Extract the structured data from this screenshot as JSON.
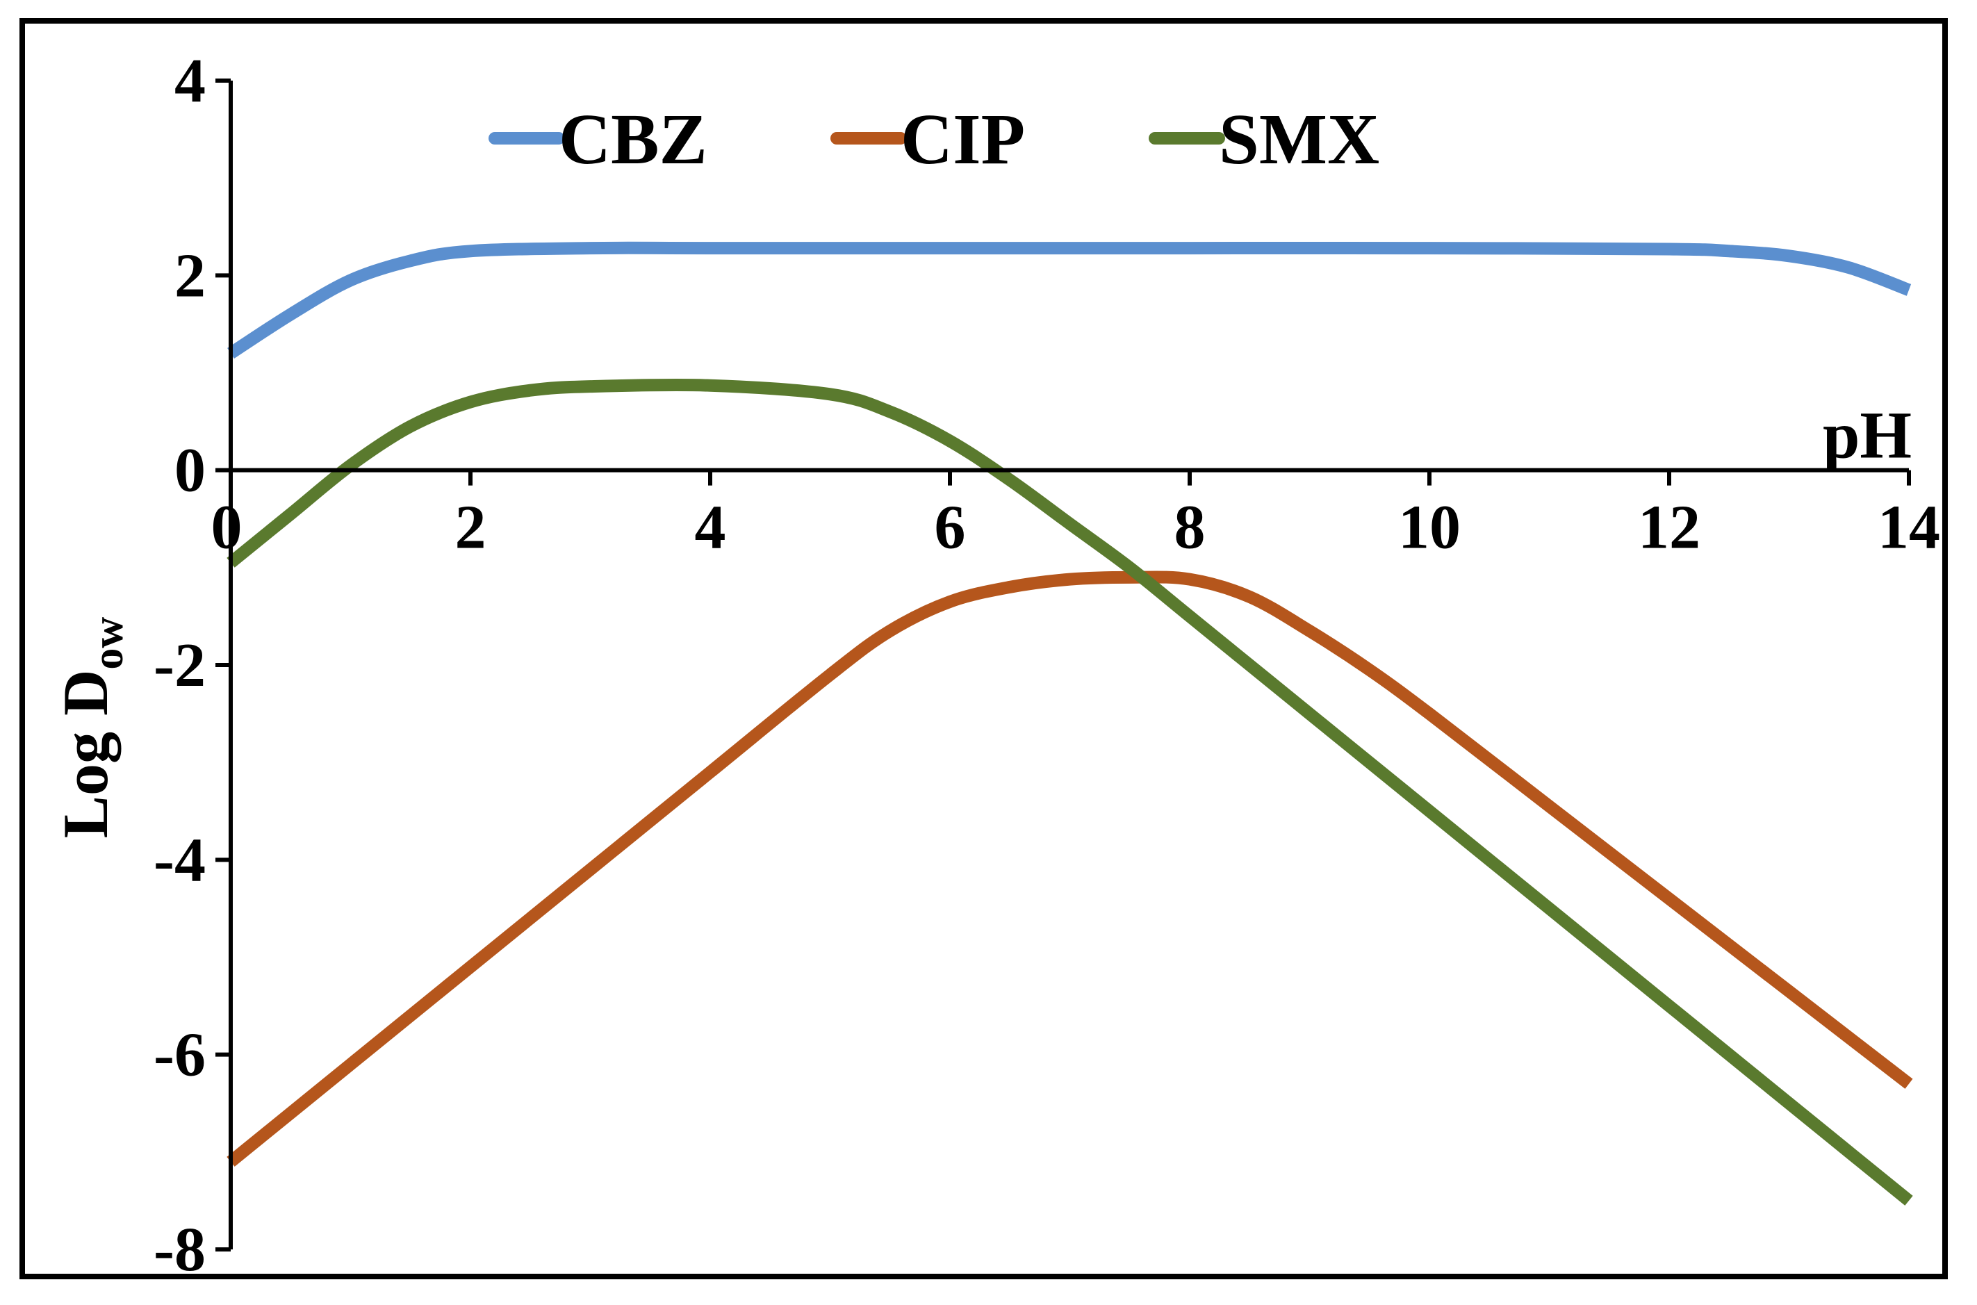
{
  "chart_data": {
    "type": "line",
    "xlabel": "pH",
    "ylabel_main": "Log D",
    "ylabel_sub": "ow",
    "xlim": [
      0,
      14
    ],
    "ylim": [
      -8,
      4
    ],
    "x_ticks": [
      0,
      2,
      4,
      6,
      8,
      10,
      12,
      14
    ],
    "y_ticks": [
      -8,
      -6,
      -4,
      -2,
      0,
      2,
      4
    ],
    "x_tick_labels": [
      "0",
      "2",
      "4",
      "6",
      "8",
      "10",
      "12",
      "14"
    ],
    "y_tick_labels": [
      "-8",
      "-6",
      "-4",
      "-2",
      "0",
      "2",
      "4"
    ],
    "grid": false,
    "legend_position": "top",
    "series": [
      {
        "name": "CBZ",
        "color": "#5b8fcf",
        "x": [
          0,
          0.5,
          1,
          1.5,
          2,
          3,
          4,
          6,
          8,
          10,
          12,
          12.5,
          13,
          13.5,
          14
        ],
        "y": [
          1.2,
          1.6,
          1.95,
          2.15,
          2.25,
          2.28,
          2.28,
          2.28,
          2.28,
          2.28,
          2.27,
          2.25,
          2.2,
          2.08,
          1.85
        ]
      },
      {
        "name": "CIP",
        "color": "#b5561c",
        "x": [
          0,
          1,
          2,
          3,
          4,
          5,
          5.5,
          6,
          6.5,
          7,
          7.5,
          8,
          8.5,
          9,
          9.5,
          10,
          11,
          12,
          13,
          14
        ],
        "y": [
          -7.1,
          -6.1,
          -5.1,
          -4.1,
          -3.1,
          -2.1,
          -1.65,
          -1.35,
          -1.2,
          -1.12,
          -1.1,
          -1.12,
          -1.3,
          -1.65,
          -2.05,
          -2.5,
          -3.45,
          -4.4,
          -5.35,
          -6.3
        ]
      },
      {
        "name": "SMX",
        "color": "#5a7a2e",
        "x": [
          0,
          0.5,
          1,
          1.5,
          2,
          2.5,
          3,
          4,
          5,
          5.5,
          6,
          6.5,
          7,
          7.5,
          8,
          9,
          10,
          11,
          12,
          13,
          14
        ],
        "y": [
          -0.95,
          -0.45,
          0.05,
          0.45,
          0.7,
          0.82,
          0.86,
          0.87,
          0.78,
          0.6,
          0.3,
          -0.1,
          -0.55,
          -1.0,
          -1.5,
          -2.5,
          -3.5,
          -4.5,
          -5.5,
          -6.5,
          -7.5
        ]
      }
    ]
  }
}
